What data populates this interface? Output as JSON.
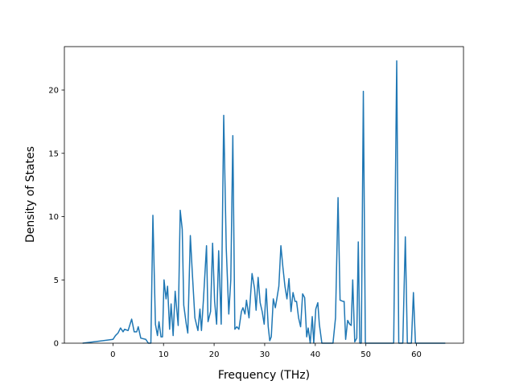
{
  "chart_data": {
    "type": "line",
    "xlabel": "Frequency (THz)",
    "ylabel": "Density of States",
    "x": [
      -6,
      0,
      0.5,
      1,
      1.5,
      2,
      2.3,
      3,
      3.7,
      4.2,
      4.7,
      5,
      5.5,
      6.5,
      7,
      7.5,
      7.9,
      8.4,
      8.8,
      9.1,
      9.5,
      9.8,
      10.1,
      10.5,
      10.8,
      11.2,
      11.5,
      11.9,
      12.3,
      12.9,
      13.3,
      13.7,
      14,
      14.5,
      14.8,
      15.3,
      15.7,
      16.2,
      16.8,
      17.2,
      17.5,
      17.9,
      18.5,
      18.8,
      19.3,
      19.7,
      20.1,
      20.5,
      20.9,
      21.4,
      21.9,
      22.4,
      22.9,
      23.3,
      23.7,
      24.1,
      24.5,
      24.9,
      25.4,
      25.7,
      26.1,
      26.4,
      26.9,
      27.5,
      28,
      28.3,
      28.7,
      29.1,
      29.5,
      29.9,
      30.3,
      30.7,
      31,
      31.3,
      31.7,
      32.1,
      32.4,
      32.8,
      33.2,
      33.6,
      34,
      34.4,
      34.8,
      35.2,
      35.6,
      36,
      36.3,
      36.7,
      37.1,
      37.5,
      37.9,
      38.3,
      38.6,
      39,
      39.4,
      39.7,
      40.1,
      40.5,
      40.8,
      41.3,
      43.5,
      44,
      44.5,
      44.9,
      45.5,
      45.7,
      46,
      46.4,
      46.8,
      47.1,
      47.4,
      47.8,
      48.2,
      48.5,
      48.8,
      49.1,
      49.5,
      49.9,
      55.5,
      56.1,
      56.5,
      57.3,
      57.8,
      58.2,
      59,
      59.4,
      59.8,
      65.7
    ],
    "series": [
      {
        "color": "#1f77b4",
        "values": [
          0,
          0.3,
          0.6,
          0.8,
          1.2,
          0.9,
          1.1,
          1.0,
          1.9,
          0.9,
          0.9,
          1.3,
          0.4,
          0.3,
          0,
          0,
          10.1,
          1.5,
          0.6,
          1.7,
          0.5,
          0.5,
          5.0,
          3.5,
          4.5,
          1.1,
          3.1,
          0.6,
          4.1,
          1.4,
          10.5,
          9.0,
          3.0,
          1.5,
          0.8,
          8.5,
          5.5,
          2.0,
          1.0,
          2.7,
          1.0,
          3.5,
          7.7,
          1.7,
          2.5,
          7.9,
          3.3,
          1.5,
          7.3,
          1.5,
          18.0,
          7.5,
          2.3,
          5.0,
          16.4,
          1.1,
          1.3,
          1.1,
          2.5,
          2.8,
          2.3,
          3.4,
          2.0,
          5.5,
          4.3,
          2.6,
          5.2,
          3.2,
          2.5,
          1.5,
          4.3,
          1.3,
          0.2,
          0.5,
          3.5,
          2.8,
          3.5,
          4.5,
          7.7,
          6.0,
          4.5,
          3.5,
          5.1,
          2.5,
          4.0,
          3.3,
          3.3,
          2.0,
          1.3,
          3.9,
          3.6,
          0.5,
          1.2,
          0,
          2.1,
          0,
          2.7,
          3.2,
          1.5,
          0,
          0,
          2.0,
          11.5,
          3.4,
          3.3,
          3.3,
          0.3,
          1.8,
          1.5,
          1.4,
          5.0,
          0.1,
          0.4,
          8.0,
          0,
          0,
          19.9,
          0,
          0,
          22.3,
          0,
          0,
          8.4,
          0,
          0,
          4.0,
          0,
          0
        ]
      }
    ],
    "xlim": [
      -9.6,
      69.3
    ],
    "xticks": [
      0,
      10,
      20,
      30,
      40,
      50,
      60
    ],
    "ylim": [
      0,
      23.43
    ],
    "yticks": [
      0,
      5,
      10,
      15,
      20
    ],
    "grid": false
  }
}
